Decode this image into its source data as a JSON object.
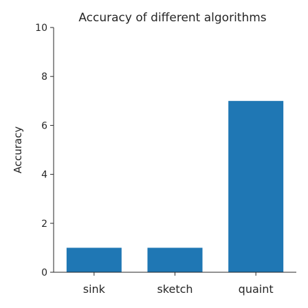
{
  "chart_data": {
    "type": "bar",
    "title": "Accuracy of different algorithms",
    "xlabel": "",
    "ylabel": "Accuracy",
    "categories": [
      "sink",
      "sketch",
      "quaint"
    ],
    "values": [
      1,
      1,
      7
    ],
    "ylim": [
      0,
      10
    ],
    "yticks": [
      "0",
      "2",
      "4",
      "6",
      "8",
      "10"
    ],
    "bar_color": "#1f77b4",
    "grid": false,
    "legend": "none"
  }
}
